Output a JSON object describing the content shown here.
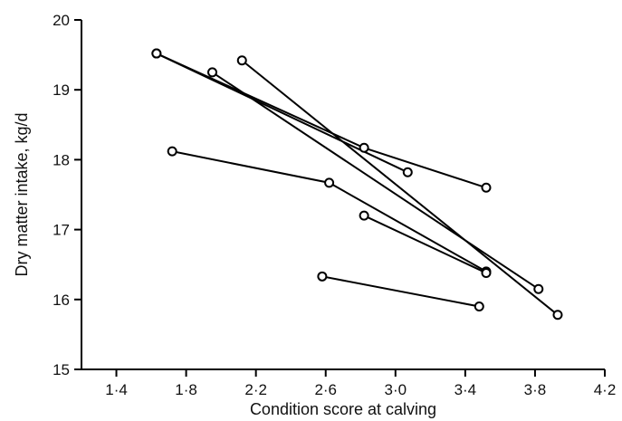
{
  "chart_data": {
    "type": "line",
    "xlabel": "Condition score at calving",
    "ylabel": "Dry matter intake, kg/d",
    "xlim": [
      1.2,
      4.2
    ],
    "ylim": [
      15,
      20
    ],
    "x_ticks": [
      "1·4",
      "1·8",
      "2·2",
      "2·6",
      "3·0",
      "3·4",
      "3·8",
      "4·2"
    ],
    "x_tick_values": [
      1.4,
      1.8,
      2.2,
      2.6,
      3.0,
      3.4,
      3.8,
      4.2
    ],
    "y_ticks": [
      "15",
      "16",
      "17",
      "18",
      "19",
      "20"
    ],
    "y_tick_values": [
      15,
      16,
      17,
      18,
      19,
      20
    ],
    "grid": false,
    "legend": false,
    "series": [
      {
        "points": [
          [
            1.63,
            19.52
          ],
          [
            3.07,
            17.82
          ]
        ]
      },
      {
        "points": [
          [
            1.63,
            19.52
          ],
          [
            2.82,
            18.17
          ],
          [
            3.52,
            17.6
          ]
        ]
      },
      {
        "points": [
          [
            1.95,
            19.25
          ],
          [
            3.82,
            16.15
          ]
        ]
      },
      {
        "points": [
          [
            2.12,
            19.42
          ],
          [
            3.93,
            15.78
          ]
        ]
      },
      {
        "points": [
          [
            1.72,
            18.12
          ],
          [
            2.62,
            17.67
          ],
          [
            3.52,
            16.4
          ]
        ]
      },
      {
        "points": [
          [
            2.82,
            17.2
          ],
          [
            3.52,
            16.38
          ]
        ]
      },
      {
        "points": [
          [
            2.58,
            16.33
          ],
          [
            3.48,
            15.9
          ]
        ]
      }
    ]
  }
}
